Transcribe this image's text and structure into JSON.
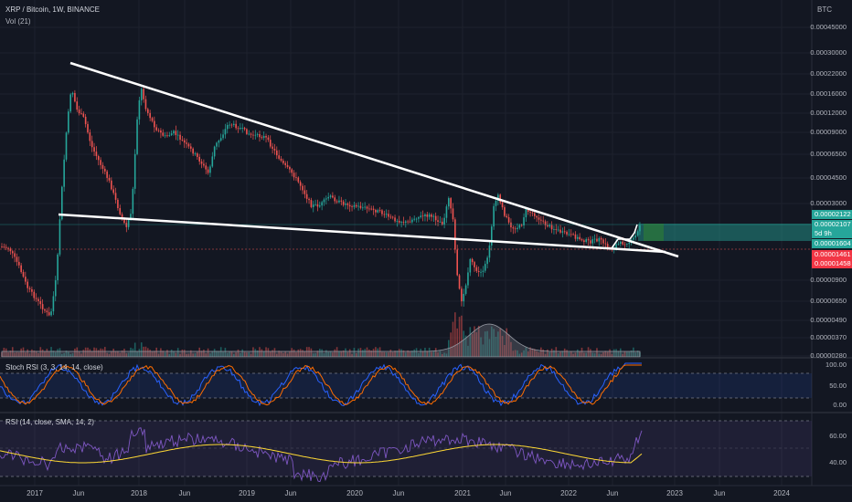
{
  "header": {
    "symbol_line": "XRP / Bitcoin, 1W, BINANCE",
    "volume_label": "Vol (21)",
    "currency": "BTC"
  },
  "price_axis": {
    "ticks": [
      "0.00045000",
      "0.00030000",
      "0.00022000",
      "0.00016000",
      "0.00012000",
      "0.00009000",
      "0.00006500",
      "0.00004500",
      "0.00003000",
      "0.00000900",
      "0.00000650",
      "0.00000490",
      "0.00000370",
      "0.00000280"
    ]
  },
  "badges": {
    "green_top": "0.00002122",
    "green_mid": "0.00002107",
    "countdown": "5d 9h",
    "green_low": "0.00001604",
    "red_top": "0.00001461",
    "red_low": "0.00001458"
  },
  "stoch": {
    "label": "Stoch RSI (3, 3, 14, 14, close)",
    "ticks": [
      "100.00",
      "50.00",
      "0.00"
    ]
  },
  "rsi": {
    "label": "RSI (14, close, SMA, 14, 2)",
    "ticks": [
      "60.00",
      "40.00"
    ]
  },
  "time_axis": [
    "2017",
    "Jun",
    "2018",
    "Jun",
    "2019",
    "Jun",
    "2020",
    "Jun",
    "2021",
    "Jun",
    "2022",
    "Jun",
    "2023",
    "Jun",
    "2024"
  ],
  "colors": {
    "background": "#131722",
    "up": "#26a69a",
    "down": "#ef5350",
    "trendline": "#ffffff",
    "stoch_k": "#2962ff",
    "stoch_d": "#ff6d00",
    "rsi_line": "#7e57c2",
    "rsi_ma": "#fdd835"
  }
}
